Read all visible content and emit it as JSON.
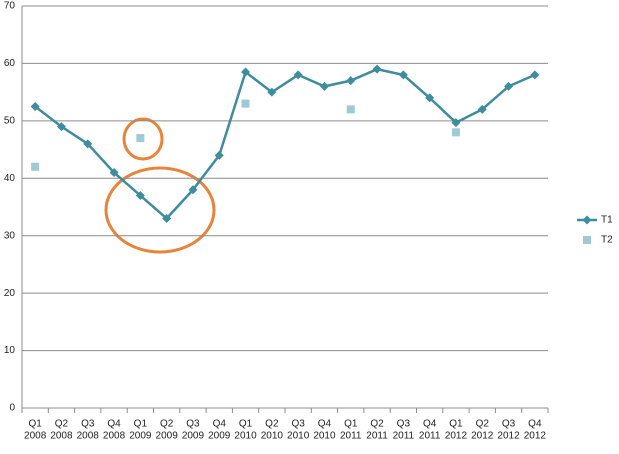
{
  "chart_data": {
    "type": "line",
    "categories": [
      [
        "Q1",
        "2008"
      ],
      [
        "Q2",
        "2008"
      ],
      [
        "Q3",
        "2008"
      ],
      [
        "Q4",
        "2008"
      ],
      [
        "Q1",
        "2009"
      ],
      [
        "Q2",
        "2009"
      ],
      [
        "Q3",
        "2009"
      ],
      [
        "Q4",
        "2009"
      ],
      [
        "Q1",
        "2010"
      ],
      [
        "Q2",
        "2010"
      ],
      [
        "Q3",
        "2010"
      ],
      [
        "Q4",
        "2010"
      ],
      [
        "Q1",
        "2011"
      ],
      [
        "Q2",
        "2011"
      ],
      [
        "Q3",
        "2011"
      ],
      [
        "Q4",
        "2011"
      ],
      [
        "Q1",
        "2012"
      ],
      [
        "Q2",
        "2012"
      ],
      [
        "Q3",
        "2012"
      ],
      [
        "Q4",
        "2012"
      ]
    ],
    "series": [
      {
        "name": "T1",
        "color": "#3f8c9f",
        "marker": "diamond",
        "line": true,
        "values": [
          52.5,
          49,
          46,
          41,
          37,
          33,
          38,
          44,
          58.5,
          55,
          58,
          56,
          57,
          59,
          58,
          54,
          49.7,
          52,
          56,
          58
        ]
      },
      {
        "name": "T2",
        "color": "#9ecad6",
        "marker": "square",
        "line": false,
        "values": [
          42,
          null,
          null,
          null,
          47,
          null,
          null,
          null,
          53,
          null,
          null,
          null,
          52,
          null,
          null,
          null,
          48,
          null,
          null,
          null
        ]
      }
    ],
    "ylim": [
      0,
      70
    ],
    "yticks": [
      0,
      10,
      20,
      30,
      40,
      50,
      60,
      70
    ],
    "grid": true,
    "legend": "right"
  }
}
